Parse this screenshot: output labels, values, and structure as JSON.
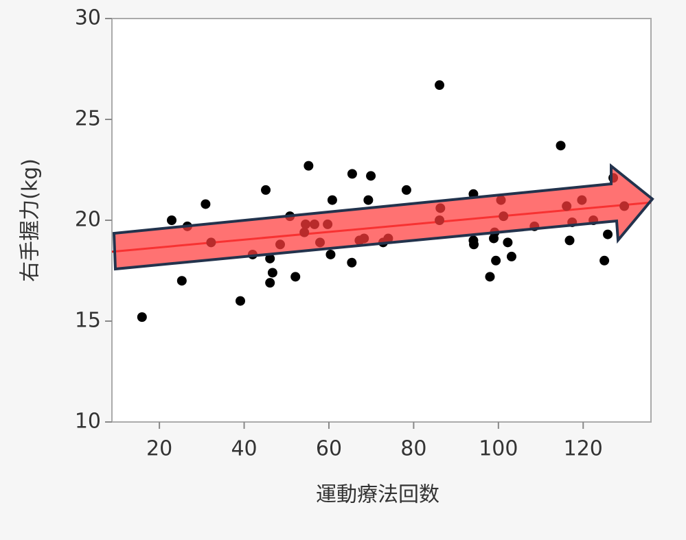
{
  "chart_data": {
    "type": "scatter",
    "x_label": "運動療法回数",
    "y_label": "右手握力(kg)",
    "xlim": [
      8.8,
      136
    ],
    "ylim": [
      10,
      30
    ],
    "xticks": [
      20,
      40,
      60,
      80,
      100,
      120
    ],
    "yticks": [
      10,
      15,
      20,
      25,
      30
    ],
    "series": [
      {
        "color": "#000000",
        "x": [
          15.9,
          22.9,
          25.3,
          26.6,
          30.9,
          32.2,
          39.1,
          42.0,
          45.1,
          46.1,
          46.1,
          46.7,
          48.5,
          50.8,
          52.1,
          54.2,
          54.5,
          55.2,
          56.6,
          57.9,
          59.7,
          60.4,
          60.8,
          65.4,
          65.5,
          67.2,
          68.3,
          69.3,
          69.9,
          72.8,
          74.0,
          78.3,
          86.1,
          86.3,
          86.1,
          94.1,
          94.1,
          94.2,
          98.0,
          98.9,
          99.1,
          99.4,
          100.6,
          101.2,
          102.2,
          103.1,
          108.5,
          114.7,
          116.1,
          116.8,
          117.4,
          119.7,
          122.4,
          125.0,
          125.8,
          127.1,
          129.7
        ],
        "values": [
          15.2,
          20.0,
          17.0,
          19.7,
          20.8,
          18.9,
          16.0,
          18.3,
          21.5,
          18.1,
          16.9,
          17.4,
          18.8,
          20.2,
          17.2,
          19.4,
          19.8,
          22.7,
          19.8,
          18.9,
          19.8,
          18.3,
          21.0,
          17.9,
          22.3,
          19.0,
          19.1,
          21.0,
          22.2,
          18.9,
          19.1,
          21.5,
          26.7,
          20.6,
          20.0,
          21.3,
          19.0,
          18.8,
          17.2,
          19.1,
          19.4,
          18.0,
          21.0,
          20.2,
          18.9,
          18.2,
          19.7,
          23.7,
          20.7,
          19.0,
          19.9,
          21.0,
          20.0,
          18.0,
          19.3,
          22.1,
          20.7
        ]
      }
    ],
    "fit_line": {
      "color": "#e31a1c",
      "x": [
        8.8,
        136
      ],
      "values": [
        18.44,
        20.88
      ]
    }
  }
}
